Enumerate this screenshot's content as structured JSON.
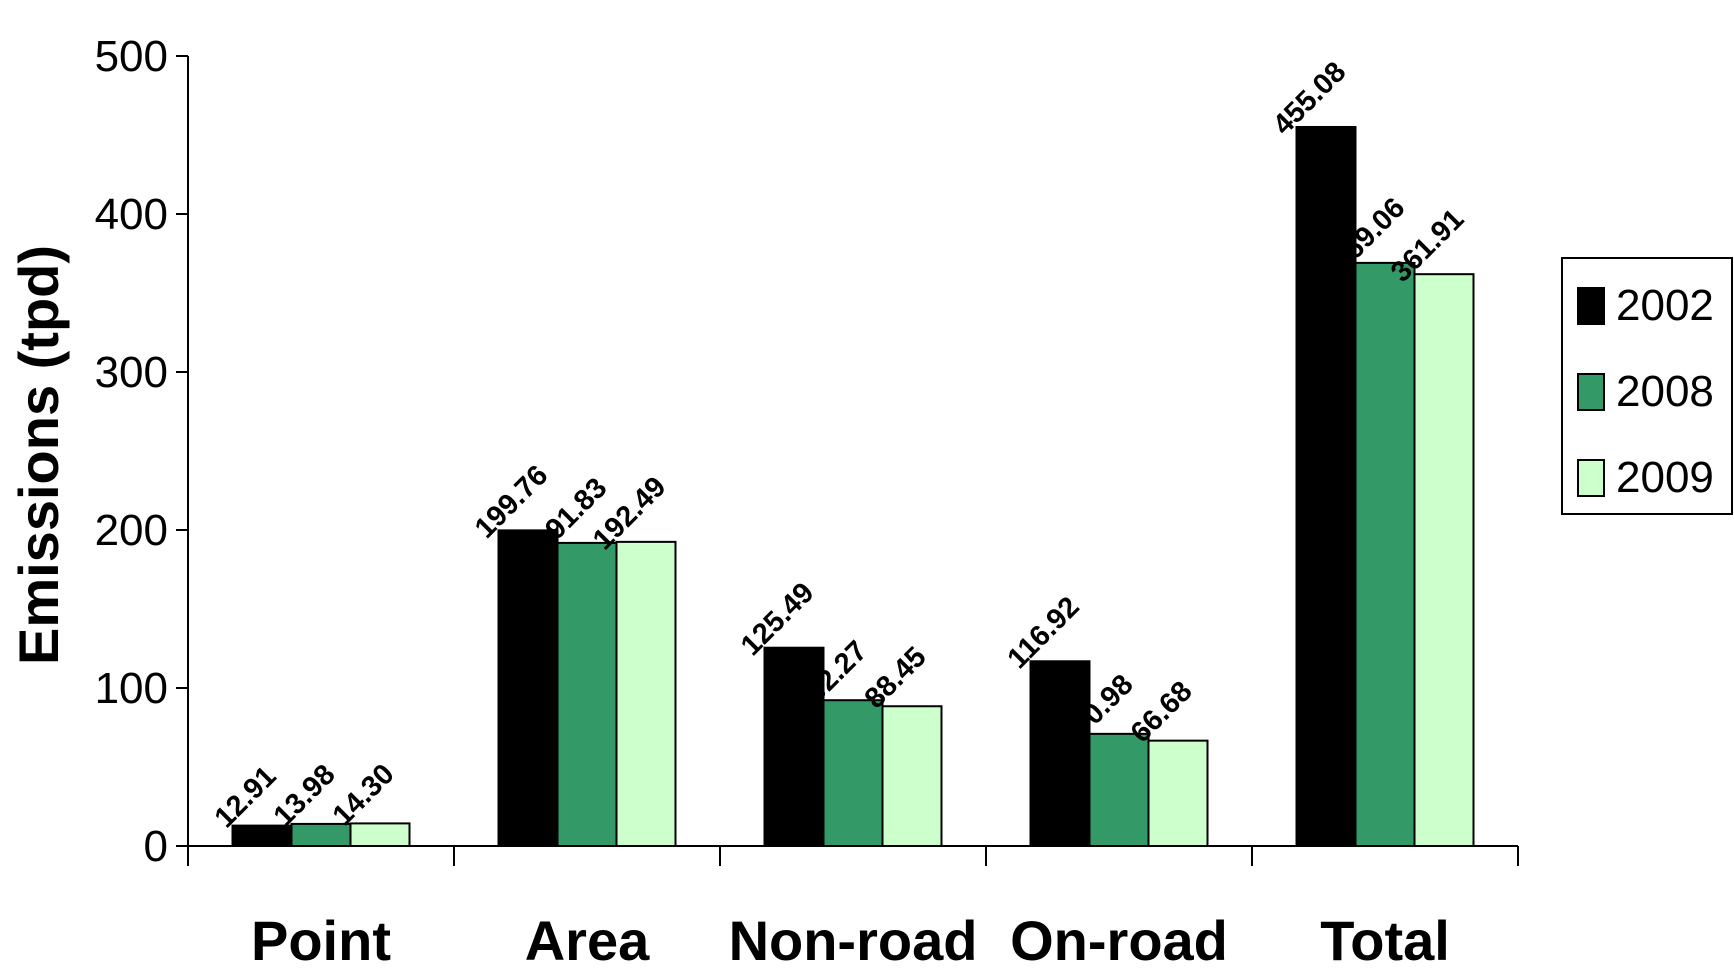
{
  "chart_data": {
    "type": "bar",
    "ylabel": "Emissions (tpd)",
    "xlabel": "",
    "ylim": [
      0,
      500
    ],
    "yticks": [
      0,
      100,
      200,
      300,
      400,
      500
    ],
    "grid": false,
    "legend_position": "right",
    "categories": [
      "Point",
      "Area",
      "Non-road",
      "On-road",
      "Total"
    ],
    "series": [
      {
        "name": "2002",
        "color": "#000000",
        "values": [
          12.91,
          199.76,
          125.49,
          116.92,
          455.08
        ],
        "labels": [
          "12.91",
          "199.76",
          "125.49",
          "116.92",
          "455.08"
        ]
      },
      {
        "name": "2008",
        "color": "#339966",
        "values": [
          13.98,
          191.83,
          92.27,
          70.98,
          369.06
        ],
        "labels": [
          "13.98",
          "191.83",
          "92.27",
          "70.98",
          "369.06"
        ]
      },
      {
        "name": "2009",
        "color": "#CCFFCC",
        "values": [
          14.3,
          192.49,
          88.45,
          66.68,
          361.91
        ],
        "labels": [
          "14.30",
          "192.49",
          "88.45",
          "66.68",
          "361.91"
        ]
      }
    ]
  }
}
